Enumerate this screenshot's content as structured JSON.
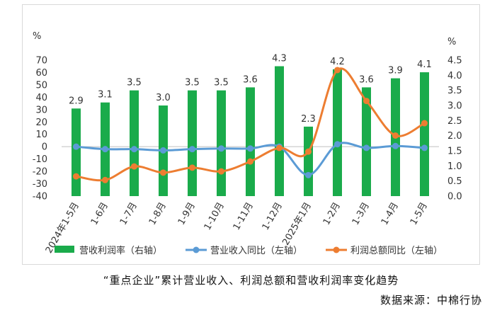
{
  "chart_data": {
    "type": "bar",
    "categories": [
      "2024年1-5月",
      "1-6月",
      "1-7月",
      "1-8月",
      "1-9月",
      "1-10月",
      "1-11月",
      "1-12月",
      "2025年1月",
      "1-2月",
      "1-3月",
      "1-4月",
      "1-5月"
    ],
    "series": [
      {
        "name": "营收利润率（右轴）",
        "type": "bar",
        "axis": "right",
        "color": "#1aab4b",
        "values": [
          2.9,
          3.1,
          3.5,
          3.0,
          3.5,
          3.5,
          3.6,
          4.3,
          2.3,
          4.2,
          3.6,
          3.9,
          4.1
        ],
        "labels": [
          "2.9",
          "3.1",
          "3.5",
          "3.0",
          "3.5",
          "3.5",
          "3.6",
          "4.3",
          "2.3",
          "4.2",
          "3.6",
          "3.9",
          "4.1"
        ]
      },
      {
        "name": "营业收入同比（左轴）",
        "type": "line",
        "axis": "left",
        "color": "#5b9bd5",
        "values": [
          0,
          -2,
          -2,
          -3,
          -2,
          -1.5,
          -1.5,
          0,
          -23,
          2,
          -1,
          0.5,
          -1
        ]
      },
      {
        "name": "利润总额同比（左轴）",
        "type": "line",
        "axis": "left",
        "color": "#ed7d31",
        "values": [
          -24,
          -27,
          -16,
          -21,
          -17,
          -20,
          -12,
          -1,
          -4,
          62,
          37,
          9,
          19
        ]
      }
    ],
    "left_axis": {
      "unit": "%",
      "ylim": [
        -40,
        70
      ],
      "ticks": [
        "70",
        "60",
        "50",
        "40",
        "30",
        "20",
        "10",
        "0",
        "-10",
        "-20",
        "-30",
        "-40"
      ]
    },
    "right_axis": {
      "unit": "%",
      "ylim": [
        0,
        4.5
      ],
      "ticks": [
        "4.5",
        "4.0",
        "3.5",
        "3.0",
        "2.5",
        "2.0",
        "1.5",
        "1.0",
        "0.5",
        "0.0"
      ]
    },
    "grid": false,
    "legend_position": "bottom"
  },
  "caption": "“重点企业”累计营业收入、利润总额和营收利润率变化趋势",
  "source": "数据来源：中棉行协"
}
